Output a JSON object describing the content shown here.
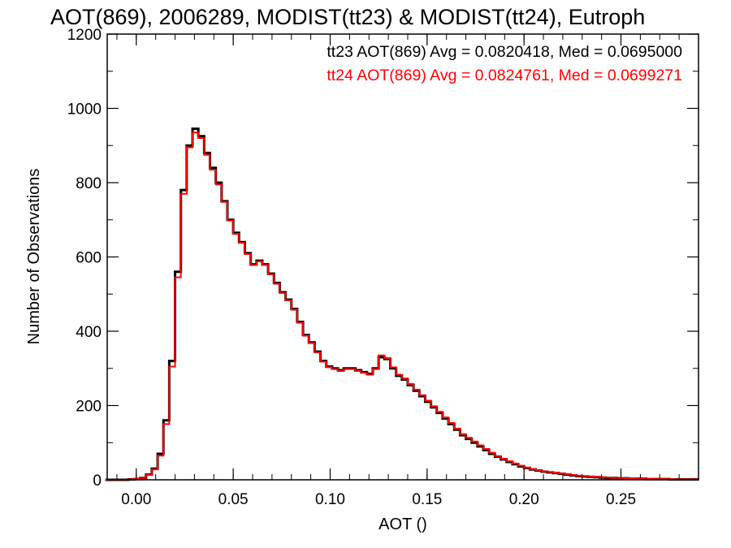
{
  "chart_data": {
    "type": "line",
    "title": "AOT(869), 2006289, MODIST(tt23) & MODIST(tt24), Eutroph",
    "xlabel": "AOT ()",
    "ylabel": "Number of Observations",
    "xlim": [
      -0.015,
      0.29
    ],
    "ylim": [
      0,
      1200
    ],
    "xticks": [
      0.0,
      0.05,
      0.1,
      0.15,
      0.2,
      0.25
    ],
    "xtick_labels": [
      "0.00",
      "0.05",
      "0.10",
      "0.15",
      "0.20",
      "0.25"
    ],
    "yticks": [
      0,
      200,
      400,
      600,
      800,
      1000,
      1200
    ],
    "ytick_labels": [
      "0",
      "200",
      "400",
      "600",
      "800",
      "1000",
      "1200"
    ],
    "step": "histogram",
    "grid": false,
    "annotations": [
      {
        "text": "tt23 AOT(869) Avg = 0.0820418, Med = 0.0695000",
        "color": "#000000"
      },
      {
        "text": "tt24 AOT(869) Avg = 0.0824761, Med = 0.0699271",
        "color": "#ff0000"
      }
    ],
    "x": [
      -0.0145,
      -0.0115,
      -0.0085,
      -0.0055,
      -0.0025,
      0.0005,
      0.0035,
      0.0065,
      0.0095,
      0.0125,
      0.0155,
      0.0185,
      0.0215,
      0.0245,
      0.0275,
      0.0305,
      0.0335,
      0.0365,
      0.0395,
      0.0425,
      0.0455,
      0.0485,
      0.0515,
      0.0545,
      0.0575,
      0.0605,
      0.0635,
      0.0665,
      0.0695,
      0.0725,
      0.0755,
      0.0785,
      0.0815,
      0.0845,
      0.0875,
      0.0905,
      0.0935,
      0.0965,
      0.0995,
      0.1025,
      0.1055,
      0.1085,
      0.1115,
      0.1145,
      0.1175,
      0.1205,
      0.1235,
      0.1265,
      0.1295,
      0.1325,
      0.1355,
      0.1385,
      0.1415,
      0.1445,
      0.1475,
      0.1505,
      0.1535,
      0.1565,
      0.1595,
      0.1625,
      0.1655,
      0.1685,
      0.1715,
      0.1745,
      0.1775,
      0.1805,
      0.1835,
      0.1865,
      0.1895,
      0.1925,
      0.1955,
      0.1985,
      0.2015,
      0.2045,
      0.2075,
      0.2105,
      0.2135,
      0.2165,
      0.2195,
      0.2225,
      0.2255,
      0.2285,
      0.2315,
      0.2345,
      0.2375,
      0.2405,
      0.2435,
      0.2465,
      0.2495,
      0.2525,
      0.2555,
      0.2585,
      0.2615,
      0.2645,
      0.2675,
      0.2705,
      0.2735,
      0.2765,
      0.2795,
      0.2825,
      0.2855,
      0.2885
    ],
    "series": [
      {
        "name": "tt23",
        "color": "#000000",
        "values": [
          0,
          0,
          0,
          0,
          1,
          2,
          5,
          14,
          30,
          70,
          160,
          320,
          560,
          780,
          900,
          945,
          925,
          880,
          840,
          800,
          750,
          700,
          665,
          640,
          610,
          580,
          590,
          580,
          555,
          530,
          505,
          485,
          460,
          425,
          390,
          370,
          345,
          320,
          305,
          300,
          295,
          300,
          300,
          295,
          290,
          285,
          300,
          330,
          325,
          300,
          280,
          270,
          255,
          240,
          225,
          210,
          195,
          180,
          165,
          150,
          135,
          120,
          110,
          100,
          90,
          80,
          70,
          62,
          55,
          48,
          42,
          36,
          32,
          28,
          25,
          22,
          20,
          18,
          16,
          14,
          12,
          10,
          9,
          8,
          7,
          6,
          5,
          5,
          4,
          4,
          3,
          3,
          3,
          2,
          2,
          2,
          2,
          1,
          1,
          1,
          1,
          1
        ]
      },
      {
        "name": "tt24",
        "color": "#ff0000",
        "values": [
          0,
          0,
          0,
          0,
          1,
          2,
          5,
          13,
          28,
          65,
          150,
          305,
          545,
          770,
          895,
          935,
          920,
          875,
          835,
          795,
          748,
          698,
          662,
          638,
          608,
          578,
          588,
          578,
          553,
          528,
          503,
          483,
          458,
          423,
          388,
          368,
          343,
          318,
          303,
          298,
          293,
          298,
          298,
          293,
          288,
          283,
          298,
          335,
          328,
          303,
          283,
          273,
          258,
          243,
          228,
          213,
          198,
          183,
          168,
          153,
          138,
          123,
          113,
          103,
          93,
          83,
          73,
          64,
          57,
          50,
          44,
          38,
          33,
          29,
          26,
          23,
          21,
          19,
          17,
          15,
          13,
          11,
          10,
          9,
          8,
          7,
          6,
          5,
          5,
          4,
          4,
          3,
          3,
          3,
          2,
          2,
          2,
          2,
          1,
          1,
          1,
          1
        ]
      }
    ]
  }
}
